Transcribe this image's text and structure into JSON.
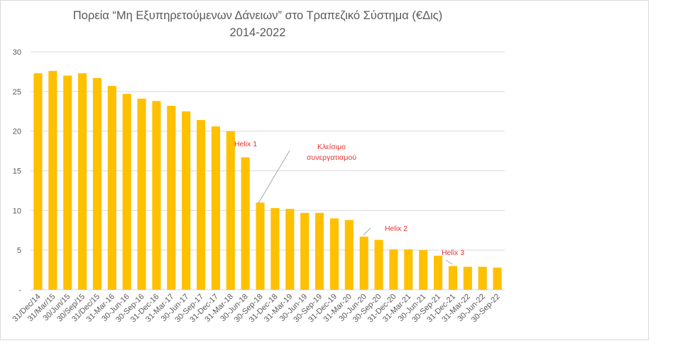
{
  "chart_data": {
    "type": "bar",
    "title_line1": "Πορεία “Μη Εξυπηρετούμενων  Δάνειων” στο Τραπεζικό Σύστημα (€Δις)",
    "title_line2": "2014-2022",
    "xlabel": "",
    "ylabel": "",
    "ylim": [
      0,
      30
    ],
    "yticks": [
      {
        "value": 0,
        "label": "-"
      },
      {
        "value": 5,
        "label": "5"
      },
      {
        "value": 10,
        "label": "10"
      },
      {
        "value": 15,
        "label": "15"
      },
      {
        "value": 20,
        "label": "20"
      },
      {
        "value": 25,
        "label": "25"
      },
      {
        "value": 30,
        "label": "30"
      }
    ],
    "grid": true,
    "bar_color": "#FFC000",
    "grid_color": "#d9d9d9",
    "annotation_color": "#e8312f",
    "categories": [
      "31/Dec/14",
      "31/Mar/15",
      "30/Jun/15",
      "30/Sep/15",
      "31/Dec/15",
      "31-Mar-16",
      "30-Jun-16",
      "30-Sep-16",
      "31-Dec-16",
      "31-Mar-17",
      "30-Jun-17",
      "30-Sep-17",
      "31-Dec-17",
      "31-Mar-18",
      "30-Jun-18",
      "30-Sep-18",
      "31-Dec-18",
      "31-Mar-19",
      "30-Jun-19",
      "30-Sep-19",
      "31-Dec-19",
      "31-Mar-20",
      "30-Jun-20",
      "30-Sep-20",
      "31-Dec-20",
      "31-Mar-21",
      "30-Jun-21",
      "30-Sep-21",
      "31-Dec-21",
      "31-Mar-22",
      "30-Jun-22",
      "30-Sep-22"
    ],
    "values": [
      27.3,
      27.6,
      27.0,
      27.3,
      26.7,
      25.7,
      24.7,
      24.1,
      23.8,
      23.2,
      22.5,
      21.4,
      20.6,
      20.0,
      16.7,
      11.0,
      10.3,
      10.2,
      9.7,
      9.7,
      9.0,
      8.8,
      6.7,
      6.3,
      5.1,
      5.1,
      5.0,
      4.3,
      3.0,
      2.9,
      2.9,
      2.8
    ],
    "annotations": [
      {
        "text": "Helix 1",
        "category_index": 14
      },
      {
        "text": "Κλείσιμο",
        "text2": "συνεργατισμού",
        "category_index": 15
      },
      {
        "text": "Helix 2",
        "category_index": 22
      },
      {
        "text": "Helix 3",
        "category_index": 28
      }
    ]
  }
}
